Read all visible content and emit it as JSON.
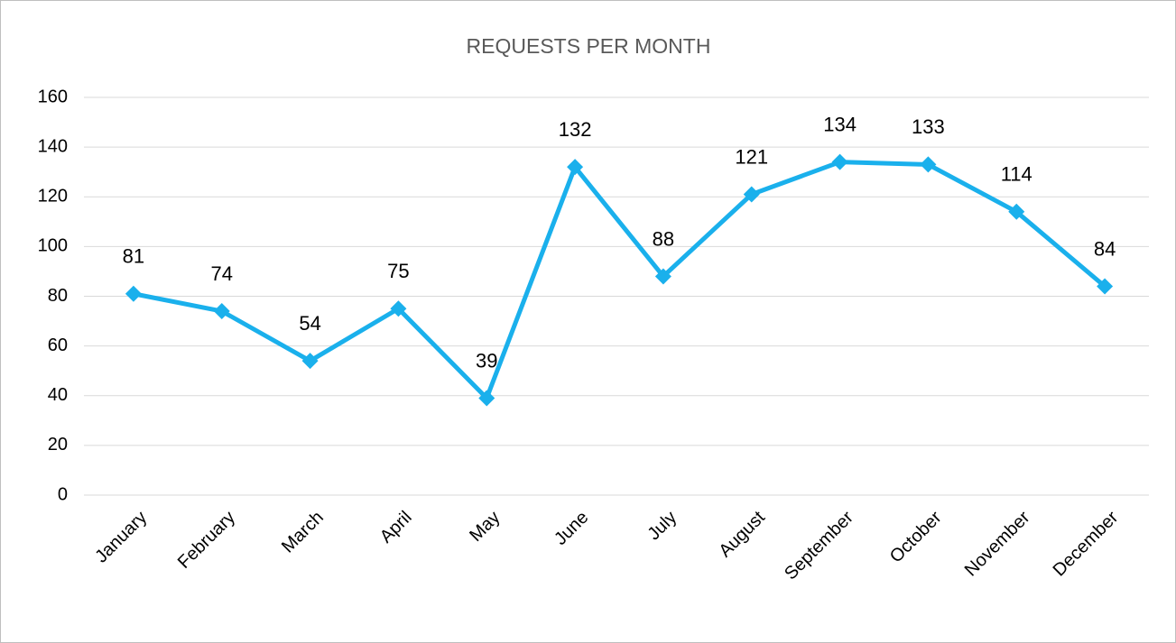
{
  "chart_data": {
    "type": "line",
    "title": "REQUESTS PER MONTH",
    "categories": [
      "January",
      "February",
      "March",
      "April",
      "May",
      "June",
      "July",
      "August",
      "September",
      "October",
      "November",
      "December"
    ],
    "series": [
      {
        "name": "Requests",
        "color": "#1ab0ec",
        "values": [
          81,
          74,
          54,
          75,
          39,
          132,
          88,
          121,
          134,
          133,
          114,
          84
        ]
      }
    ],
    "ylim": [
      0,
      160
    ],
    "yticks": [
      0,
      20,
      40,
      60,
      80,
      100,
      120,
      140,
      160
    ],
    "grid": true,
    "data_labels": true,
    "marker": "diamond"
  }
}
